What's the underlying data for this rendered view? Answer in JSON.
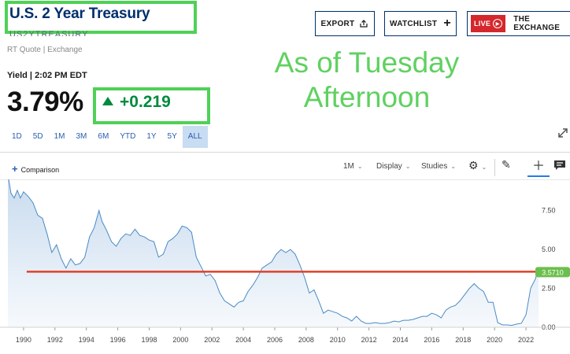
{
  "header": {
    "title": "U.S. 2 Year Treasury",
    "ticker_fragment": "US2YTREASURY",
    "quote_type": "RT Quote | Exchange"
  },
  "buttons": {
    "export": "EXPORT",
    "watchlist": "WATCHLIST",
    "live": "LIVE",
    "exchange": "THE EXCHANGE"
  },
  "annotation": {
    "line1": "As of Tuesday",
    "line2": "Afternoon"
  },
  "quote": {
    "label": "Yield | 2:02 PM EDT",
    "value": "3.79%",
    "change": "+0.219"
  },
  "ranges": [
    "1D",
    "5D",
    "1M",
    "3M",
    "6M",
    "YTD",
    "1Y",
    "5Y",
    "ALL"
  ],
  "active_range": "ALL",
  "toolbar": {
    "comparison": "Comparison",
    "interval": "1M",
    "display": "Display",
    "studies": "Studies"
  },
  "icons": [
    "export-icon",
    "plus-icon",
    "play-icon",
    "expand-icon",
    "gear-icon",
    "pencil-icon",
    "crosshair-icon",
    "comment-icon"
  ],
  "colors": {
    "accent_green": "#4fd157",
    "change_green": "#008a3e",
    "line_blue": "#4a8ac4",
    "fill_blue": "#c5d9ee",
    "reference_red": "#e0402a",
    "title_navy": "#002f6c",
    "live_red": "#d4282c"
  },
  "chart_data": {
    "type": "area",
    "title": "",
    "xlabel": "",
    "ylabel": "",
    "xlim": [
      1988.9,
      2023.1
    ],
    "ylim": [
      0,
      9.5
    ],
    "x_ticks": [
      "1990",
      "1992",
      "1994",
      "1996",
      "1998",
      "2000",
      "2002",
      "2004",
      "2006",
      "2008",
      "2010",
      "2012",
      "2014",
      "2016",
      "2018",
      "2020",
      "2022"
    ],
    "y_ticks": [
      "0.00",
      "2.50",
      "5.00",
      "7.50"
    ],
    "grid": false,
    "legend": "none",
    "series": [
      {
        "x": [
          1989.0,
          1989.2,
          1989.4,
          1989.6,
          1989.8,
          1990.0,
          1990.3,
          1990.6,
          1990.9,
          1991.2,
          1991.5,
          1991.8,
          1992.1,
          1992.4,
          1992.7,
          1993.0,
          1993.3,
          1993.6,
          1993.9,
          1994.2,
          1994.5,
          1994.8,
          1995.0,
          1995.3,
          1995.6,
          1995.9,
          1996.2,
          1996.5,
          1996.8,
          1997.1,
          1997.4,
          1997.7,
          1998.0,
          1998.3,
          1998.6,
          1998.9,
          1999.2,
          1999.5,
          1999.8,
          2000.1,
          2000.4,
          2000.7,
          2001.0,
          2001.3,
          2001.6,
          2001.9,
          2002.2,
          2002.5,
          2002.8,
          2003.1,
          2003.4,
          2003.7,
          2004.0,
          2004.3,
          2004.6,
          2004.9,
          2005.2,
          2005.5,
          2005.8,
          2006.1,
          2006.4,
          2006.7,
          2007.0,
          2007.3,
          2007.6,
          2007.9,
          2008.2,
          2008.5,
          2008.8,
          2009.1,
          2009.4,
          2009.7,
          2010.0,
          2010.3,
          2010.6,
          2010.9,
          2011.2,
          2011.5,
          2011.8,
          2012.1,
          2012.4,
          2012.7,
          2013.0,
          2013.3,
          2013.6,
          2013.9,
          2014.2,
          2014.5,
          2014.8,
          2015.1,
          2015.4,
          2015.7,
          2016.0,
          2016.3,
          2016.6,
          2016.9,
          2017.2,
          2017.5,
          2017.8,
          2018.1,
          2018.4,
          2018.7,
          2019.0,
          2019.3,
          2019.6,
          2019.9,
          2020.2,
          2020.5,
          2020.8,
          2021.1,
          2021.4,
          2021.7,
          2022.0,
          2022.3,
          2022.6,
          2022.8
        ],
        "values": [
          9.8,
          8.6,
          8.3,
          8.8,
          8.3,
          8.7,
          8.4,
          8.0,
          7.2,
          7.0,
          6.0,
          4.8,
          5.3,
          4.4,
          3.8,
          4.4,
          4.0,
          4.1,
          4.5,
          5.8,
          6.4,
          7.5,
          6.8,
          6.2,
          5.5,
          5.2,
          5.7,
          6.0,
          5.9,
          6.3,
          5.9,
          5.8,
          5.6,
          5.5,
          4.5,
          4.7,
          5.5,
          5.7,
          6.0,
          6.5,
          6.4,
          6.1,
          4.5,
          3.9,
          3.3,
          3.4,
          3.0,
          2.2,
          1.7,
          1.5,
          1.3,
          1.6,
          1.7,
          2.3,
          2.7,
          3.2,
          3.8,
          4.0,
          4.2,
          4.7,
          5.0,
          4.8,
          5.0,
          4.7,
          4.0,
          3.2,
          2.2,
          2.4,
          1.7,
          0.9,
          1.1,
          1.0,
          0.9,
          0.7,
          0.6,
          0.4,
          0.7,
          0.4,
          0.25,
          0.25,
          0.3,
          0.25,
          0.25,
          0.3,
          0.4,
          0.35,
          0.45,
          0.45,
          0.5,
          0.6,
          0.7,
          0.7,
          0.9,
          0.8,
          0.6,
          1.1,
          1.3,
          1.4,
          1.7,
          2.1,
          2.5,
          2.8,
          2.5,
          2.3,
          1.6,
          1.6,
          0.3,
          0.15,
          0.15,
          0.12,
          0.2,
          0.25,
          0.8,
          2.5,
          3.1,
          3.79
        ]
      }
    ],
    "reference_line": {
      "y": 3.57,
      "x_start": 1990.2,
      "x_end": 2023.1
    },
    "last_value_label": "3.5710"
  }
}
